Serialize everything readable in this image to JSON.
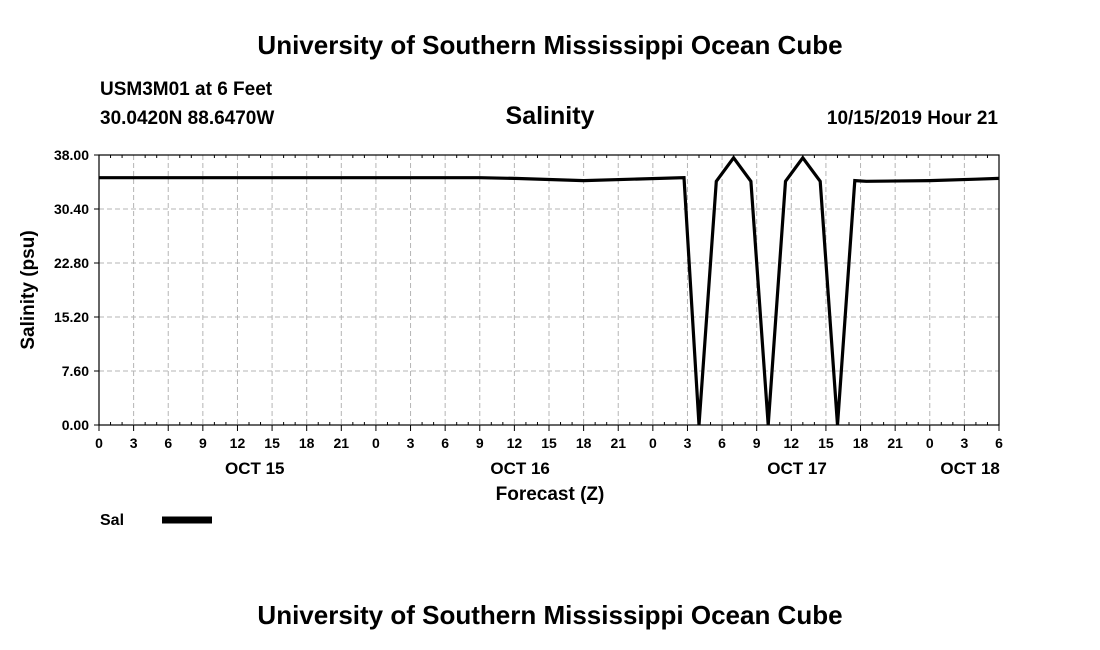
{
  "page": {
    "title_top": "University of Southern Mississippi Ocean Cube",
    "title_bottom": "University of Southern Mississippi Ocean Cube",
    "station": "USM3M01 at 6 Feet",
    "coords": "30.0420N 88.6470W",
    "timestamp": "10/15/2019 Hour 21"
  },
  "chart_data": {
    "type": "line",
    "title": "Salinity",
    "xlabel": "Forecast (Z)",
    "ylabel": "Salinity (psu)",
    "ylim": [
      0,
      38
    ],
    "xlim": [
      0,
      78
    ],
    "grid": true,
    "y_ticks": [
      "38.00",
      "30.40",
      "22.80",
      "15.20",
      "7.60",
      "0.00"
    ],
    "x_ticks": [
      "0",
      "3",
      "6",
      "9",
      "12",
      "15",
      "18",
      "21",
      "0",
      "3",
      "6",
      "9",
      "12",
      "15",
      "18",
      "21",
      "0",
      "3",
      "6",
      "9",
      "12",
      "15",
      "18",
      "21",
      "0",
      "3",
      "6"
    ],
    "day_labels": [
      {
        "label": "OCT 15",
        "x": 13.5
      },
      {
        "label": "OCT 16",
        "x": 36.5
      },
      {
        "label": "OCT 17",
        "x": 60.5
      },
      {
        "label": "OCT 18",
        "x": 75.5
      }
    ],
    "legend": {
      "placement": "bottom-left",
      "color": "#000000"
    },
    "series": [
      {
        "name": "Sal",
        "x": [
          0,
          12,
          24,
          30,
          33,
          36,
          42,
          50.7,
          52,
          53.5,
          55,
          56.5,
          58,
          59.5,
          61,
          62.5,
          64,
          65.5,
          66.5,
          72,
          76,
          78
        ],
        "y": [
          34.8,
          34.8,
          34.8,
          34.8,
          34.8,
          34.7,
          34.4,
          34.8,
          0,
          34.3,
          37.6,
          34.3,
          0,
          34.3,
          37.6,
          34.3,
          0,
          34.4,
          34.3,
          34.4,
          34.6,
          34.7
        ]
      }
    ]
  }
}
